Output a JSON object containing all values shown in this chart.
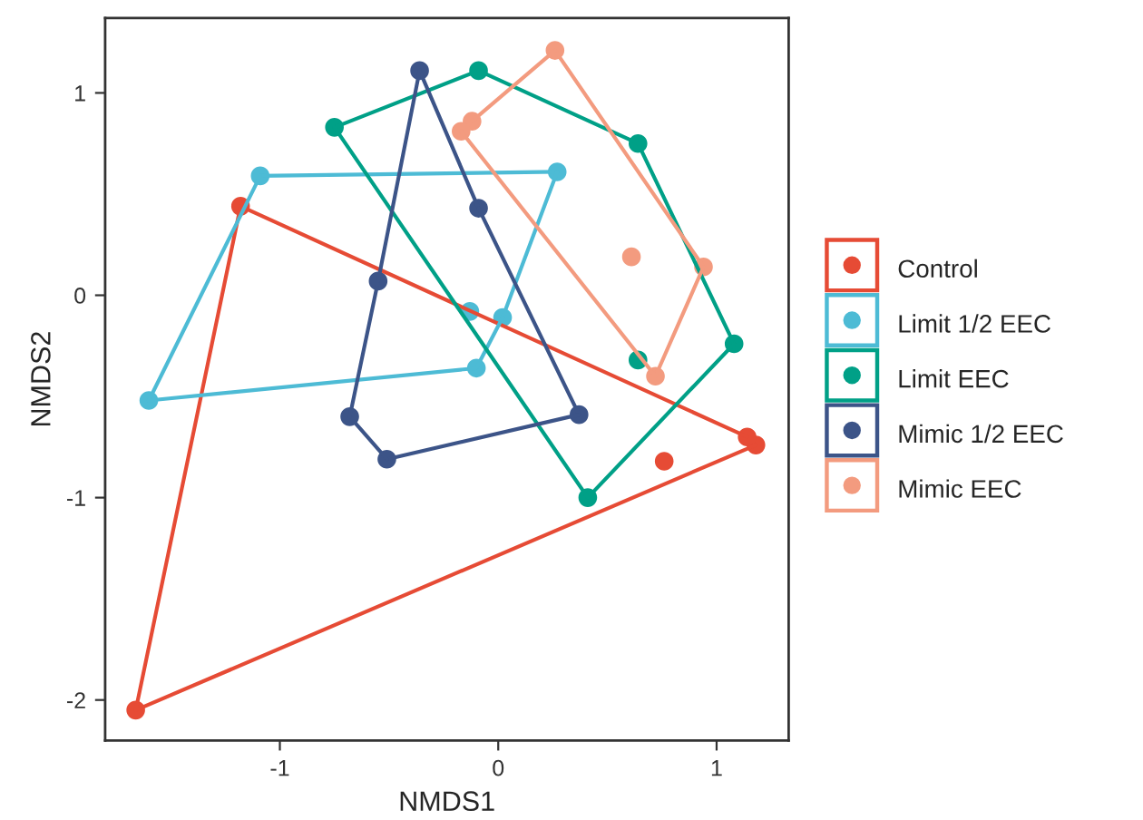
{
  "chart_data": {
    "type": "scatter",
    "xlabel": "NMDS1",
    "ylabel": "NMDS2",
    "xlim": [
      -1.8,
      1.33
    ],
    "ylim": [
      -2.2,
      1.37
    ],
    "xticks": [
      -1,
      0,
      1
    ],
    "yticks": [
      -2,
      -1,
      0,
      1
    ],
    "grid": false,
    "legend": "right",
    "marker": "circle",
    "series": [
      {
        "type": "line",
        "marker": "none",
        "color": "#e64b35",
        "x": [
          -1.18,
          1.14
        ],
        "values": [
          0.44,
          -0.7
        ]
      },
      {
        "type": "line",
        "marker": "none",
        "color": "#e64b35",
        "x": [
          -1.66,
          1.18
        ],
        "values": [
          -2.05,
          -0.74
        ]
      },
      {
        "type": "line",
        "marker": "none",
        "color": "#e64b35",
        "x": [
          -1.66,
          -1.18
        ],
        "values": [
          -2.05,
          0.44
        ]
      },
      {
        "type": "line",
        "marker": "none",
        "color": "#4dbbd5",
        "x": [
          -1.09,
          0.27
        ],
        "values": [
          0.59,
          0.61
        ]
      },
      {
        "type": "line",
        "marker": "none",
        "color": "#4dbbd5",
        "x": [
          0.02,
          0.27
        ],
        "values": [
          -0.11,
          0.61
        ]
      },
      {
        "type": "line",
        "marker": "none",
        "color": "#4dbbd5",
        "x": [
          -0.1,
          0.02
        ],
        "values": [
          -0.36,
          -0.11
        ]
      },
      {
        "type": "line",
        "marker": "none",
        "color": "#4dbbd5",
        "x": [
          -1.6,
          -0.1
        ],
        "values": [
          -0.52,
          -0.36
        ]
      },
      {
        "type": "line",
        "marker": "none",
        "color": "#4dbbd5",
        "x": [
          -1.6,
          -1.09
        ],
        "values": [
          -0.52,
          0.59
        ]
      },
      {
        "type": "line",
        "marker": "none",
        "color": "#00a087",
        "x": [
          -0.75,
          -0.09
        ],
        "values": [
          0.83,
          1.11
        ]
      },
      {
        "type": "line",
        "marker": "none",
        "color": "#00a087",
        "x": [
          -0.09,
          0.64
        ],
        "values": [
          1.11,
          0.75
        ]
      },
      {
        "type": "line",
        "marker": "none",
        "color": "#00a087",
        "x": [
          0.64,
          1.08
        ],
        "values": [
          0.75,
          -0.24
        ]
      },
      {
        "type": "line",
        "marker": "none",
        "color": "#00a087",
        "x": [
          0.41,
          1.08
        ],
        "values": [
          -1.0,
          -0.24
        ]
      },
      {
        "type": "line",
        "marker": "none",
        "color": "#00a087",
        "x": [
          -0.75,
          0.41
        ],
        "values": [
          0.83,
          -1.0
        ]
      },
      {
        "type": "line",
        "marker": "none",
        "color": "#3c5488",
        "x": [
          -0.36,
          -0.09
        ],
        "values": [
          1.11,
          0.43
        ]
      },
      {
        "type": "line",
        "marker": "none",
        "color": "#3c5488",
        "x": [
          -0.09,
          0.37
        ],
        "values": [
          0.43,
          -0.59
        ]
      },
      {
        "type": "line",
        "marker": "none",
        "color": "#3c5488",
        "x": [
          -0.51,
          0.37
        ],
        "values": [
          -0.81,
          -0.59
        ]
      },
      {
        "type": "line",
        "marker": "none",
        "color": "#3c5488",
        "x": [
          -0.68,
          -0.51
        ],
        "values": [
          -0.6,
          -0.81
        ]
      },
      {
        "type": "line",
        "marker": "none",
        "color": "#3c5488",
        "x": [
          -0.68,
          -0.55
        ],
        "values": [
          -0.6,
          0.07
        ]
      },
      {
        "type": "line",
        "marker": "none",
        "color": "#3c5488",
        "x": [
          -0.55,
          -0.36
        ],
        "values": [
          0.07,
          1.11
        ]
      },
      {
        "type": "line",
        "marker": "none",
        "color": "#f39b7f",
        "x": [
          0.26,
          0.94
        ],
        "values": [
          1.21,
          0.14
        ]
      },
      {
        "type": "line",
        "marker": "none",
        "color": "#f39b7f",
        "x": [
          0.72,
          0.94
        ],
        "values": [
          -0.4,
          0.14
        ]
      },
      {
        "type": "line",
        "marker": "none",
        "color": "#f39b7f",
        "x": [
          -0.17,
          0.72
        ],
        "values": [
          0.81,
          -0.4
        ]
      },
      {
        "type": "line",
        "marker": "none",
        "color": "#f39b7f",
        "x": [
          -0.12,
          0.26
        ],
        "values": [
          0.86,
          1.21
        ]
      },
      {
        "name": "Control",
        "color": "#e64b35",
        "x": [
          -1.18,
          -1.66,
          1.18,
          1.14,
          0.76
        ],
        "values": [
          0.44,
          -2.05,
          -0.74,
          -0.7,
          -0.82
        ]
      },
      {
        "name": "Limit 1/2 EEC",
        "color": "#4dbbd5",
        "x": [
          -1.09,
          0.27,
          -1.6,
          -0.1,
          0.02,
          -0.13
        ],
        "values": [
          0.59,
          0.61,
          -0.52,
          -0.36,
          -0.11,
          -0.08
        ]
      },
      {
        "name": "Limit EEC",
        "color": "#00a087",
        "x": [
          -0.75,
          -0.09,
          0.64,
          1.08,
          0.41,
          0.64
        ],
        "values": [
          0.83,
          1.11,
          0.75,
          -0.24,
          -1.0,
          -0.32
        ]
      },
      {
        "name": "Mimic 1/2 EEC",
        "color": "#3c5488",
        "x": [
          -0.36,
          -0.09,
          0.37,
          -0.51,
          -0.68,
          -0.55
        ],
        "values": [
          1.11,
          0.43,
          -0.59,
          -0.81,
          -0.6,
          0.07
        ]
      },
      {
        "name": "Mimic EEC",
        "color": "#f39b7f",
        "x": [
          0.26,
          -0.12,
          -0.17,
          0.94,
          0.72,
          0.61
        ],
        "values": [
          1.21,
          0.86,
          0.81,
          0.14,
          -0.4,
          0.19
        ]
      }
    ]
  }
}
